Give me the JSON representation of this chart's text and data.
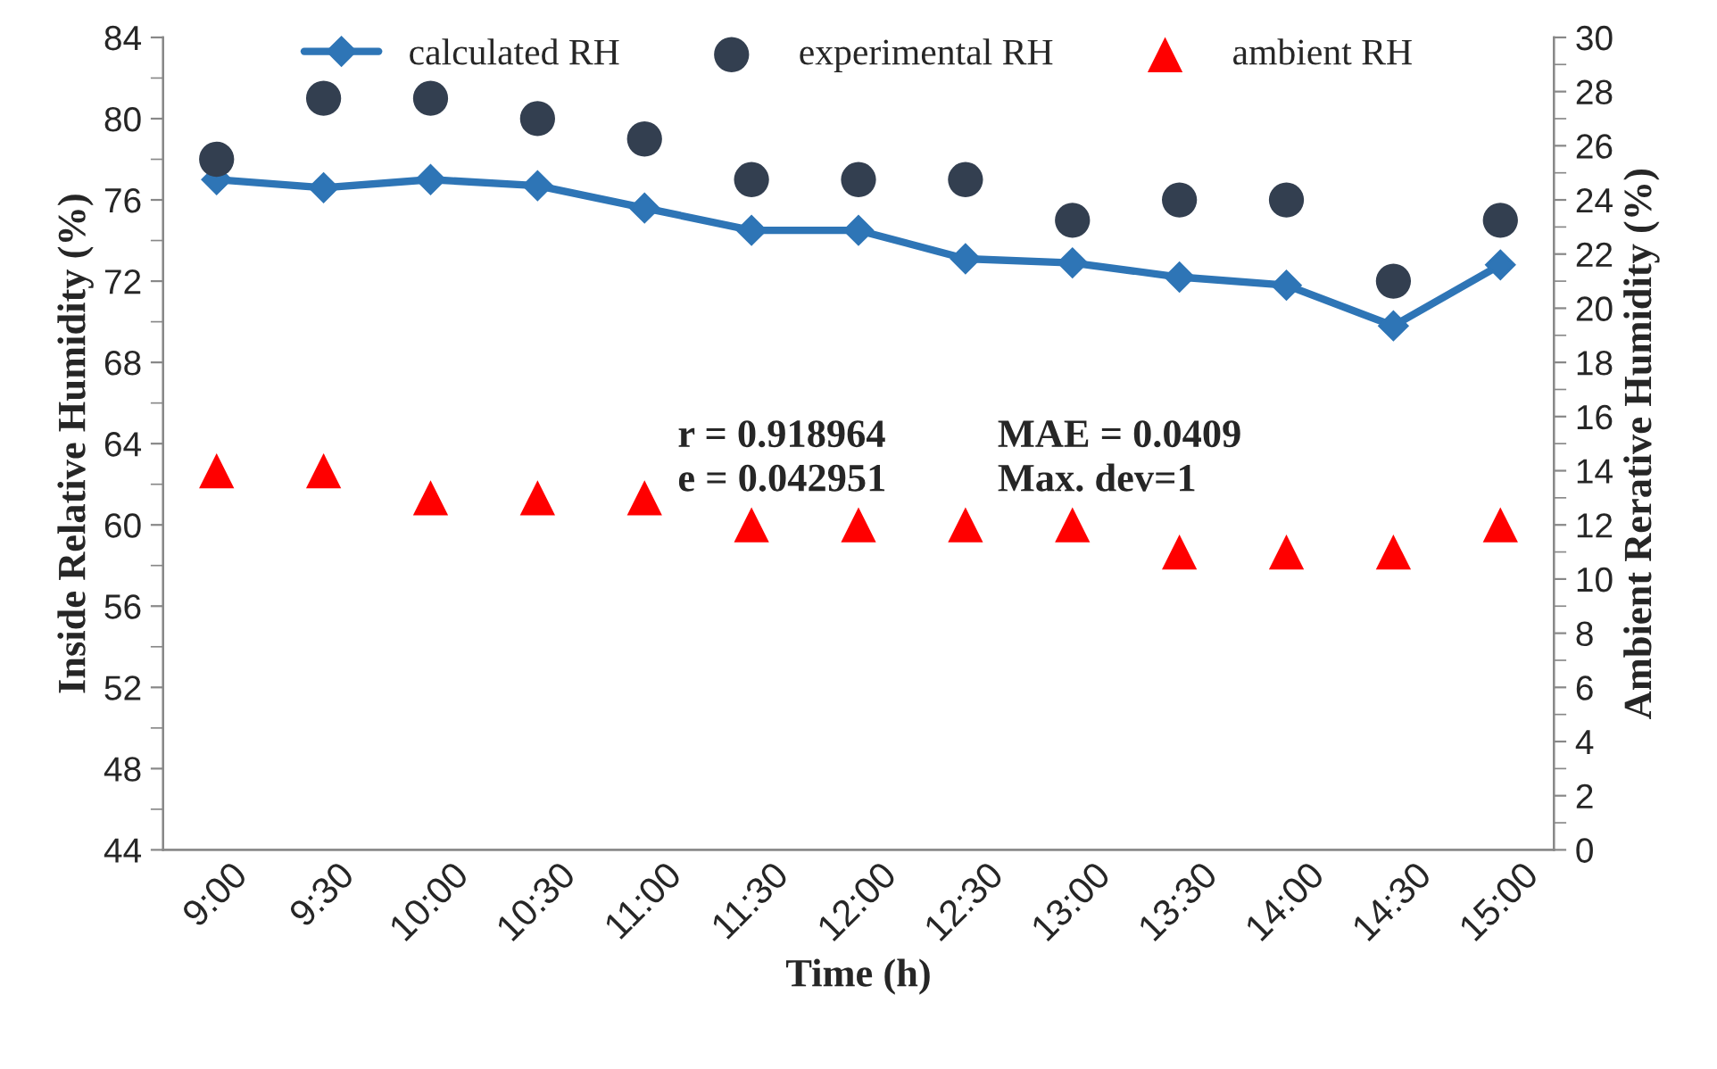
{
  "chart_data": {
    "type": "line",
    "xlabel": "Time (h)",
    "ylabel": "Inside Relative Humidity (%)",
    "y2label": "Ambient Rerative Humidity (%)",
    "categories": [
      "9:00",
      "9:30",
      "10:00",
      "10:30",
      "11:00",
      "11:30",
      "12:00",
      "12:30",
      "13:00",
      "13:30",
      "14:00",
      "14:30",
      "15:00"
    ],
    "series": [
      {
        "name": "calculated RH",
        "color": "#2e75b6",
        "marker": "diamond",
        "values": [
          77,
          76.6,
          77,
          76.7,
          75.6,
          74.5,
          74.5,
          73.1,
          72.9,
          72.2,
          71.8,
          69.8,
          72.8
        ]
      },
      {
        "name": "experimental RH",
        "type": "scatter",
        "color": "#333f50",
        "marker": "circle",
        "values": [
          78,
          81,
          81,
          80,
          79,
          77,
          77,
          77,
          75,
          76,
          76,
          72,
          75
        ]
      },
      {
        "name": "ambient RH",
        "type": "scatter",
        "color": "#ff0000",
        "marker": "triangle",
        "axis": "y2",
        "values": [
          14,
          14,
          13,
          13,
          13,
          12,
          12,
          12,
          12,
          11,
          11,
          11,
          12
        ]
      }
    ],
    "ylim": [
      44,
      84
    ],
    "yticks": [
      44,
      48,
      52,
      56,
      60,
      64,
      68,
      72,
      76,
      80,
      84
    ],
    "y2lim": [
      0,
      30
    ],
    "y2ticks": [
      0,
      2,
      4,
      6,
      8,
      10,
      12,
      14,
      16,
      18,
      20,
      22,
      24,
      26,
      28,
      30
    ],
    "annotations": [
      "r = 0.918964\ne = 0.042951",
      "MAE = 0.0409\nMax. dev=1"
    ],
    "legend": "top",
    "grid": false
  }
}
